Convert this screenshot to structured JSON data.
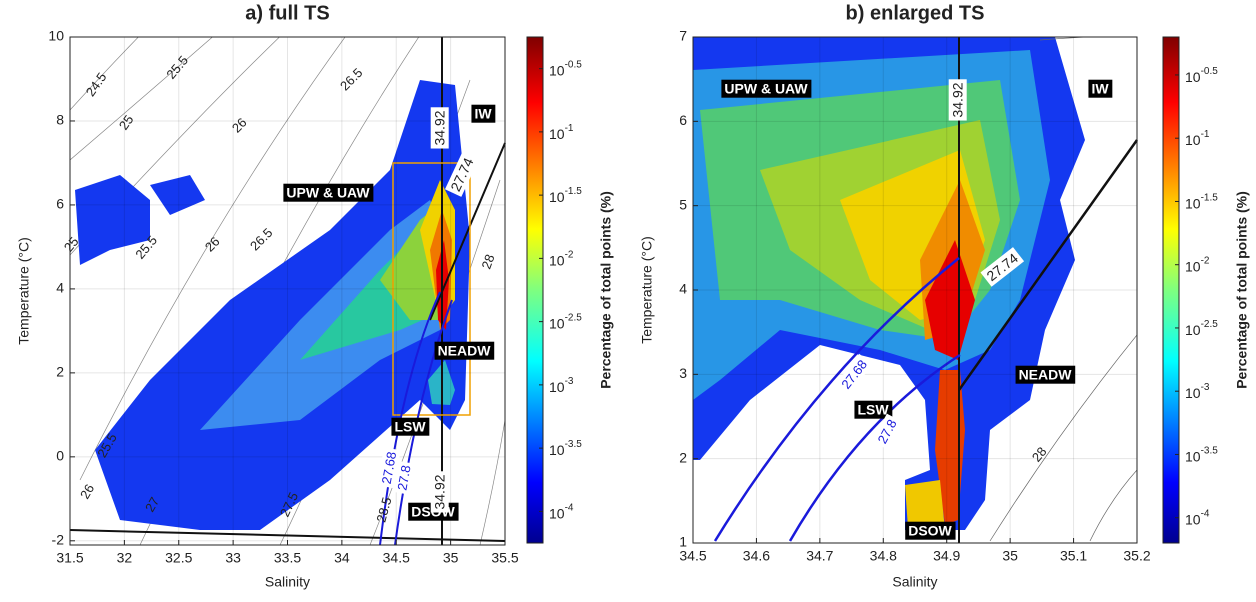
{
  "chart_data": [
    {
      "type": "density",
      "title": "a) full TS",
      "xlabel": "Salinity",
      "ylabel": "Temperature (°C)",
      "xlim": [
        31.5,
        35.5
      ],
      "ylim": [
        -2.1,
        10
      ],
      "xticks": [
        31.5,
        32,
        32.5,
        33,
        33.5,
        34,
        34.5,
        35,
        35.5
      ],
      "yticks": [
        -2,
        0,
        2,
        4,
        6,
        8,
        10
      ],
      "grid": true,
      "colorbar": {
        "label": "Percentage of total points (%)",
        "lim": [
          -4.25,
          -0.25
        ],
        "colormap": "jet",
        "ticks": [
          {
            "value": -0.5,
            "label": "10^-0.5"
          },
          {
            "value": -1,
            "label": "10^-1"
          },
          {
            "value": -1.5,
            "label": "10^-1.5"
          },
          {
            "value": -2,
            "label": "10^-2"
          },
          {
            "value": -2.5,
            "label": "10^-2.5"
          },
          {
            "value": -3,
            "label": "10^-3"
          },
          {
            "value": -3.5,
            "label": "10^-3.5"
          },
          {
            "value": -4,
            "label": "10^-4"
          }
        ]
      },
      "annotations": [
        {
          "text": "UPW & UAW",
          "style": "box"
        },
        {
          "text": "IW",
          "style": "box"
        },
        {
          "text": "NEADW",
          "style": "box"
        },
        {
          "text": "LSW",
          "style": "box"
        },
        {
          "text": "DSOW",
          "style": "box"
        },
        {
          "text": "34.92",
          "style": "line"
        },
        {
          "text": "34.92",
          "style": "line"
        },
        {
          "text": "27.74",
          "style": "line"
        },
        {
          "text": "27.68",
          "style": "blue"
        },
        {
          "text": "27.8",
          "style": "blue"
        },
        {
          "text": "24.5",
          "style": "contour"
        },
        {
          "text": "25",
          "style": "contour"
        },
        {
          "text": "25.5",
          "style": "contour"
        },
        {
          "text": "26",
          "style": "contour"
        },
        {
          "text": "26.5",
          "style": "contour"
        },
        {
          "text": "25",
          "style": "contour"
        },
        {
          "text": "25.5",
          "style": "contour"
        },
        {
          "text": "26",
          "style": "contour"
        },
        {
          "text": "26.5",
          "style": "contour"
        },
        {
          "text": "28",
          "style": "contour"
        },
        {
          "text": "25.5",
          "style": "contour"
        },
        {
          "text": "26",
          "style": "contour"
        },
        {
          "text": "27",
          "style": "contour"
        },
        {
          "text": "27.5",
          "style": "contour"
        },
        {
          "text": "28.5",
          "style": "contour"
        }
      ]
    },
    {
      "type": "density",
      "title": "b) enlarged TS",
      "xlabel": "Salinity",
      "ylabel": "Temperature (°C)",
      "xlim": [
        34.5,
        35.2
      ],
      "ylim": [
        1,
        7
      ],
      "xticks": [
        34.5,
        34.6,
        34.7,
        34.8,
        34.9,
        35,
        35.1,
        35.2
      ],
      "yticks": [
        1,
        2,
        3,
        4,
        5,
        6,
        7
      ],
      "grid": true,
      "colorbar": {
        "label": "Percentage of total points (%)",
        "lim": [
          -4.2,
          -0.2
        ],
        "colormap": "jet",
        "ticks": [
          {
            "value": -0.5,
            "label": "10^-0.5"
          },
          {
            "value": -1,
            "label": "10^-1"
          },
          {
            "value": -1.5,
            "label": "10^-1.5"
          },
          {
            "value": -2,
            "label": "10^-2"
          },
          {
            "value": -2.5,
            "label": "10^-2.5"
          },
          {
            "value": -3,
            "label": "10^-3"
          },
          {
            "value": -3.5,
            "label": "10^-3.5"
          },
          {
            "value": -4,
            "label": "10^-4"
          }
        ]
      },
      "annotations": [
        {
          "text": "UPW & UAW",
          "style": "box"
        },
        {
          "text": "IW",
          "style": "box"
        },
        {
          "text": "NEADW",
          "style": "box"
        },
        {
          "text": "LSW",
          "style": "box"
        },
        {
          "text": "DSOW",
          "style": "box"
        },
        {
          "text": "34.92",
          "style": "line"
        },
        {
          "text": "27.74",
          "style": "line"
        },
        {
          "text": "27.68",
          "style": "blue"
        },
        {
          "text": "27.8",
          "style": "blue"
        },
        {
          "text": "28",
          "style": "contour"
        }
      ]
    }
  ]
}
